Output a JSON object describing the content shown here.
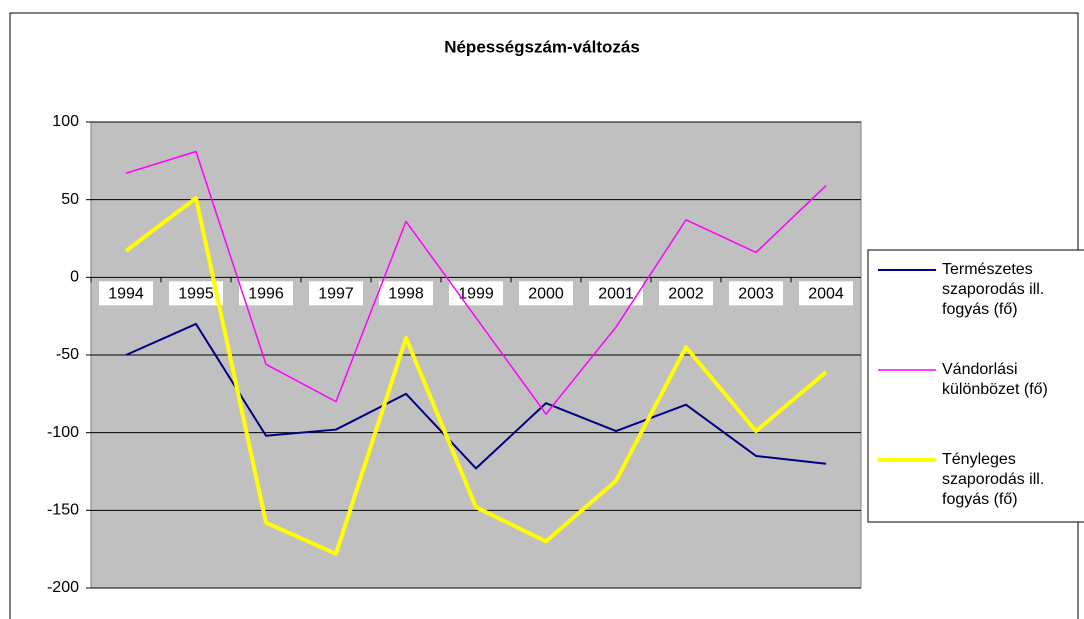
{
  "chart_data": {
    "type": "line",
    "title": "Népességszám-változás",
    "categories": [
      "1994",
      "1995",
      "1996",
      "1997",
      "1998",
      "1999",
      "2000",
      "2001",
      "2002",
      "2003",
      "2004"
    ],
    "series": [
      {
        "name": "Természetes szaporodás ill. fogyás (fő)",
        "color": "#000080",
        "values": [
          -50,
          -30,
          -102,
          -98,
          -75,
          -123,
          -81,
          -99,
          -82,
          -115,
          -120
        ]
      },
      {
        "name": "Vándorlási különbözet (fő)",
        "color": "#ff00ff",
        "values": [
          67,
          81,
          -56,
          -80,
          36,
          -26,
          -88,
          -32,
          37,
          16,
          59
        ]
      },
      {
        "name": "Tényleges szaporodás ill. fogyás (fő)",
        "color": "#ffff00",
        "values": [
          17,
          51,
          -158,
          -178,
          -39,
          -148,
          -170,
          -131,
          -45,
          -99,
          -61
        ]
      }
    ],
    "ylim": [
      -200,
      100
    ],
    "yticks": [
      -200,
      -150,
      -100,
      -50,
      0,
      50,
      100
    ],
    "grid": true,
    "legend": "right"
  }
}
